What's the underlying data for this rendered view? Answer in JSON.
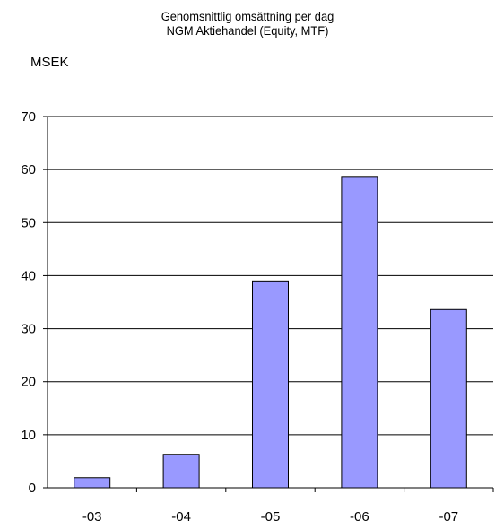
{
  "chart_data": {
    "type": "bar",
    "title": "Genomsnittlig omsättning per dag",
    "subtitle": "NGM Aktiehandel (Equity, MTF)",
    "ylabel": "MSEK",
    "xlabel": "",
    "categories": [
      "-03",
      "-04",
      "-05",
      "-06",
      "-07"
    ],
    "values": [
      1.9,
      6.3,
      39.0,
      58.7,
      33.6
    ],
    "ylim": [
      0,
      70
    ],
    "yticks": [
      0,
      10,
      20,
      30,
      40,
      50,
      60,
      70
    ],
    "grid": true,
    "legend": "none",
    "colors": {
      "bar_fill": "#9999ff",
      "bar_stroke": "#000000",
      "grid": "#000000",
      "axis": "#000000"
    }
  }
}
